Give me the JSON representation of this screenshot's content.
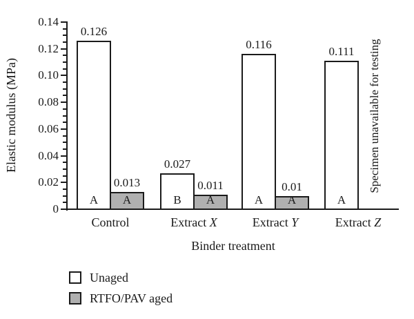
{
  "chart_data": {
    "type": "bar",
    "title": "",
    "xlabel": "Binder treatment",
    "ylabel": "Elastic modulus (MPa)",
    "ylim": [
      0,
      0.14
    ],
    "ytick_step": 0.02,
    "yminor_step": 0.005,
    "ytick_labels": [
      "0",
      "0.02",
      "0.04",
      "0.06",
      "0.08",
      "0.10",
      "0.12",
      "0.14"
    ],
    "grid": false,
    "legend_position": "bottom-left",
    "categories": [
      {
        "text": "Control",
        "italic": ""
      },
      {
        "text": "Extract",
        "italic": "X"
      },
      {
        "text": "Extract",
        "italic": "Y"
      },
      {
        "text": "Extract",
        "italic": "Z"
      }
    ],
    "series": [
      {
        "name": "Unaged",
        "fill": "#ffffff",
        "values": [
          0.126,
          0.027,
          0.116,
          0.111
        ],
        "value_labels": [
          "0.126",
          "0.027",
          "0.116",
          "0.111"
        ],
        "letters": [
          "A",
          "B",
          "A",
          "A"
        ]
      },
      {
        "name": "RTFO/PAV aged",
        "fill": "#b0b0b0",
        "values": [
          0.013,
          0.011,
          0.01,
          null
        ],
        "value_labels": [
          "0.013",
          "0.011",
          "0.01",
          ""
        ],
        "letters": [
          "A",
          "A",
          "A",
          ""
        ]
      }
    ],
    "annotation": {
      "text": "Specimen unavailable for testing",
      "at_category_index": 3,
      "at_series_index": 1
    }
  },
  "colors": {
    "axis": "#1a1a1a",
    "text": "#1a1a1a",
    "unaged_fill": "#ffffff",
    "aged_fill": "#b0b0b0",
    "background": "#ffffff"
  }
}
